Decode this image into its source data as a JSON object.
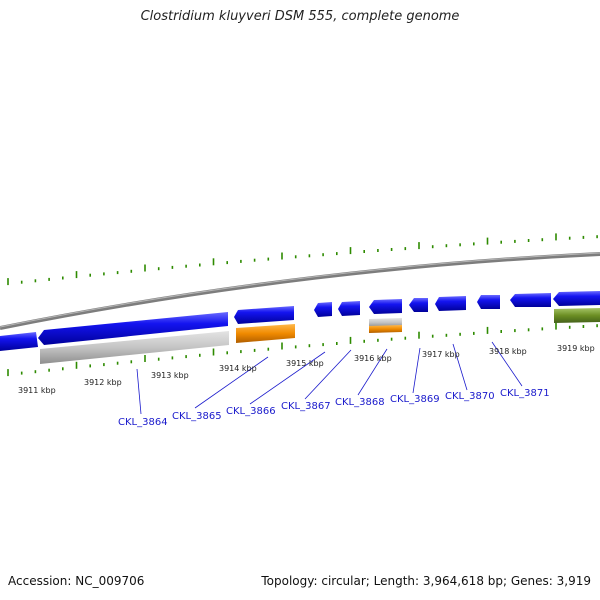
{
  "title": "Clostridium kluyveri DSM 555, complete genome",
  "footer": {
    "accession": "Accession: NC_009706",
    "topology": "Topology: circular; Length: 3,964,618 bp; Genes: 3,919"
  },
  "scale_labels": [
    "3911 kbp",
    "3912 kbp",
    "3913 kbp",
    "3914 kbp",
    "3915 kbp",
    "3916 kbp",
    "3917 kbp",
    "3918 kbp",
    "3919 kbp"
  ],
  "gene_labels": [
    "CKL_3864",
    "CKL_3865",
    "CKL_3866",
    "CKL_3867",
    "CKL_3868",
    "CKL_3869",
    "CKL_3870",
    "CKL_3871"
  ],
  "colors": {
    "cds": "#1010e0",
    "grey_feature": "#c4c4c4",
    "orange_feature": "#f08a00",
    "green_feature": "#6b8e23",
    "backbone": "#8a8a8a",
    "tick_green": "#2e8b00",
    "label_blue": "#1a1acc"
  }
}
